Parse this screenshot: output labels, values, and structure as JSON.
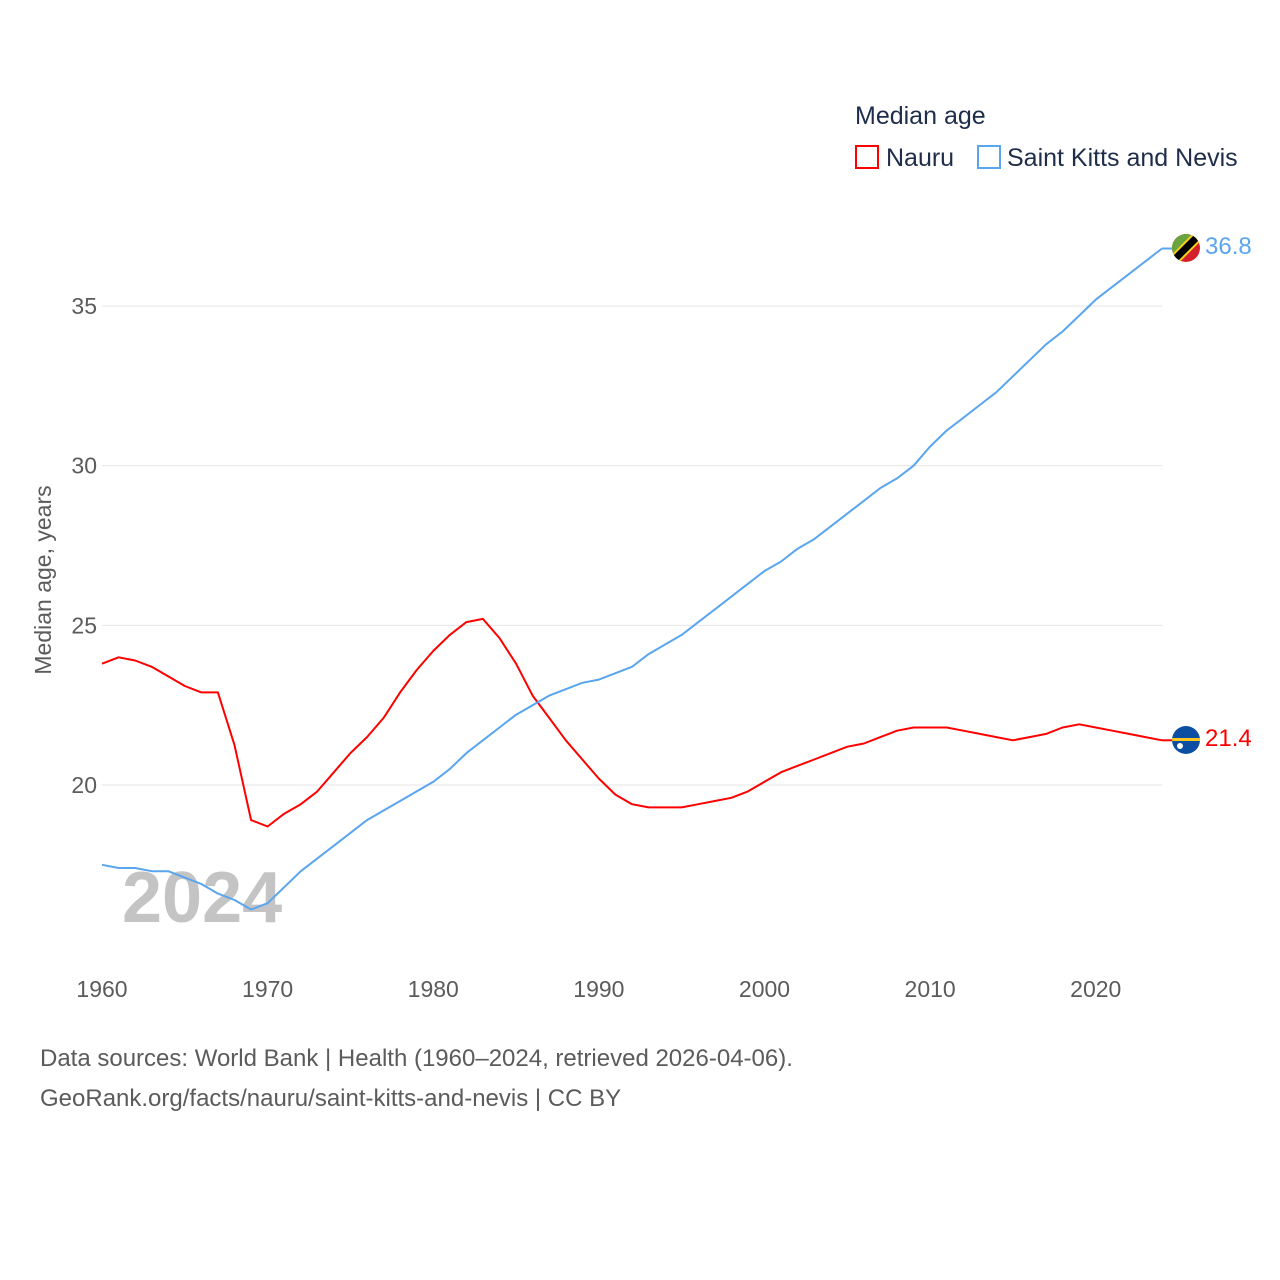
{
  "chart_data": {
    "type": "line",
    "title": "Median age",
    "xlabel": "",
    "ylabel": "Median age, years",
    "xlim": [
      1960,
      2024
    ],
    "ylim": [
      15.5,
      37.5
    ],
    "x_ticks": [
      "1960",
      "1970",
      "1980",
      "1990",
      "2000",
      "2010",
      "2020"
    ],
    "y_ticks": [
      "20",
      "25",
      "30",
      "35"
    ],
    "grid": true,
    "legend_placement": "top-right",
    "year_watermark": "2024",
    "x": [
      1960,
      1961,
      1962,
      1963,
      1964,
      1965,
      1966,
      1967,
      1968,
      1969,
      1970,
      1971,
      1972,
      1973,
      1974,
      1975,
      1976,
      1977,
      1978,
      1979,
      1980,
      1981,
      1982,
      1983,
      1984,
      1985,
      1986,
      1987,
      1988,
      1989,
      1990,
      1991,
      1992,
      1993,
      1994,
      1995,
      1996,
      1997,
      1998,
      1999,
      2000,
      2001,
      2002,
      2003,
      2004,
      2005,
      2006,
      2007,
      2008,
      2009,
      2010,
      2011,
      2012,
      2013,
      2014,
      2015,
      2016,
      2017,
      2018,
      2019,
      2020,
      2021,
      2022,
      2023,
      2024
    ],
    "series": [
      {
        "name": "Nauru",
        "color": "#ff0000",
        "end_label": "21.4",
        "values": [
          23.8,
          24.0,
          23.9,
          23.7,
          23.4,
          23.1,
          22.9,
          22.9,
          21.25,
          18.9,
          18.7,
          19.1,
          19.4,
          19.8,
          20.4,
          21.0,
          21.5,
          22.1,
          22.9,
          23.6,
          24.2,
          24.7,
          25.1,
          25.2,
          24.6,
          23.8,
          22.8,
          22.1,
          21.4,
          20.8,
          20.2,
          19.7,
          19.4,
          19.3,
          19.3,
          19.3,
          19.4,
          19.5,
          19.6,
          19.8,
          20.1,
          20.4,
          20.6,
          20.8,
          21.0,
          21.2,
          21.3,
          21.5,
          21.7,
          21.8,
          21.8,
          21.8,
          21.7,
          21.6,
          21.5,
          21.4,
          21.5,
          21.6,
          21.8,
          21.9,
          21.8,
          21.7,
          21.6,
          21.5,
          21.4
        ]
      },
      {
        "name": "Saint Kitts and Nevis",
        "color": "#5aa5ef",
        "end_label": "36.8",
        "values": [
          17.5,
          17.4,
          17.4,
          17.3,
          17.3,
          17.1,
          16.9,
          16.6,
          16.4,
          16.1,
          16.3,
          16.8,
          17.3,
          17.7,
          18.1,
          18.5,
          18.9,
          19.2,
          19.5,
          19.8,
          20.1,
          20.5,
          21.0,
          21.4,
          21.8,
          22.2,
          22.5,
          22.8,
          23.0,
          23.2,
          23.3,
          23.5,
          23.7,
          24.1,
          24.4,
          24.7,
          25.1,
          25.5,
          25.9,
          26.3,
          26.7,
          27.0,
          27.4,
          27.7,
          28.1,
          28.5,
          28.9,
          29.3,
          29.6,
          30.0,
          30.6,
          31.1,
          31.5,
          31.9,
          32.3,
          32.8,
          33.3,
          33.8,
          34.2,
          34.7,
          35.2,
          35.6,
          36.0,
          36.4,
          36.8
        ]
      }
    ]
  },
  "footer": {
    "sources": "Data sources: World Bank | Health (1960–2024, retrieved 2026-04-06).",
    "credit": "GeoRank.org/facts/nauru/saint-kitts-and-nevis | CC BY"
  }
}
